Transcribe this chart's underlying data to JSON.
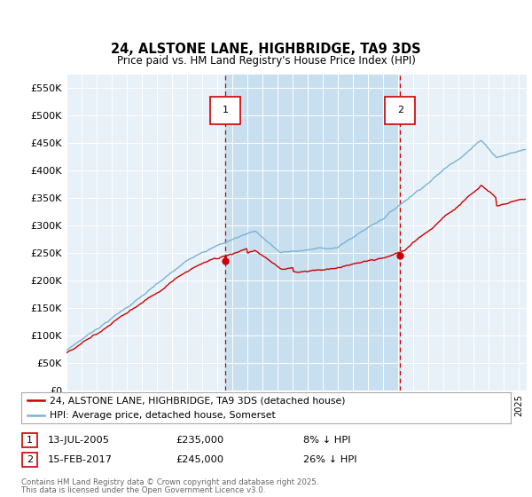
{
  "title_line1": "24, ALSTONE LANE, HIGHBRIDGE, TA9 3DS",
  "title_line2": "Price paid vs. HM Land Registry's House Price Index (HPI)",
  "ylabel_ticks": [
    "£0",
    "£50K",
    "£100K",
    "£150K",
    "£200K",
    "£250K",
    "£300K",
    "£350K",
    "£400K",
    "£450K",
    "£500K",
    "£550K"
  ],
  "ytick_values": [
    0,
    50000,
    100000,
    150000,
    200000,
    250000,
    300000,
    350000,
    400000,
    450000,
    500000,
    550000
  ],
  "ylim": [
    0,
    575000
  ],
  "xlim_start": 1995.0,
  "xlim_end": 2025.5,
  "hpi_color": "#7ab3d4",
  "price_color": "#cc0000",
  "shade_color": "#c8dff0",
  "marker1_date": 2005.53,
  "marker1_price": 235000,
  "marker1_label": "13-JUL-2005",
  "marker1_text": "£235,000",
  "marker1_note": "8% ↓ HPI",
  "marker2_date": 2017.12,
  "marker2_price": 245000,
  "marker2_label": "15-FEB-2017",
  "marker2_text": "£245,000",
  "marker2_note": "26% ↓ HPI",
  "legend_line1": "24, ALSTONE LANE, HIGHBRIDGE, TA9 3DS (detached house)",
  "legend_line2": "HPI: Average price, detached house, Somerset",
  "footer_line1": "Contains HM Land Registry data © Crown copyright and database right 2025.",
  "footer_line2": "This data is licensed under the Open Government Licence v3.0.",
  "bg_color": "#e8f1f8",
  "plot_bg": "#e8f1f8"
}
